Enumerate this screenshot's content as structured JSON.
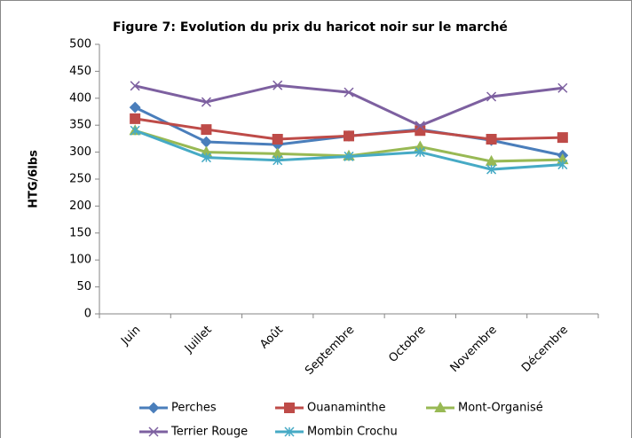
{
  "chart_data": {
    "type": "line",
    "title": "Figure 7: Evolution du prix du haricot noir sur le marché",
    "y_label": "HTG/6lbs",
    "categories": [
      "Juin",
      "Juillet",
      "Août",
      "Septembre",
      "Octobre",
      "Novembre",
      "Décembre"
    ],
    "ylim": [
      0,
      500
    ],
    "yticks": [
      0,
      50,
      100,
      150,
      200,
      250,
      300,
      350,
      400,
      450,
      500
    ],
    "grid": false,
    "legend": "bottom",
    "series": [
      {
        "name": "Perches",
        "color": "#4a7ebb",
        "marker": "diamond",
        "values": [
          383,
          319,
          314,
          330,
          342,
          322,
          294
        ]
      },
      {
        "name": "Ouanaminthe",
        "color": "#be4b48",
        "marker": "square",
        "values": [
          362,
          342,
          324,
          330,
          340,
          324,
          327
        ]
      },
      {
        "name": "Mont-Organisé",
        "color": "#98b954",
        "marker": "triangle",
        "values": [
          340,
          300,
          297,
          293,
          310,
          283,
          286
        ]
      },
      {
        "name": "Terrier Rouge",
        "color": "#7d60a0",
        "marker": "x",
        "values": [
          423,
          393,
          424,
          411,
          349,
          403,
          419
        ]
      },
      {
        "name": "Mombin Crochu",
        "color": "#46aac5",
        "marker": "star",
        "values": [
          340,
          290,
          285,
          292,
          300,
          268,
          277
        ]
      }
    ]
  }
}
